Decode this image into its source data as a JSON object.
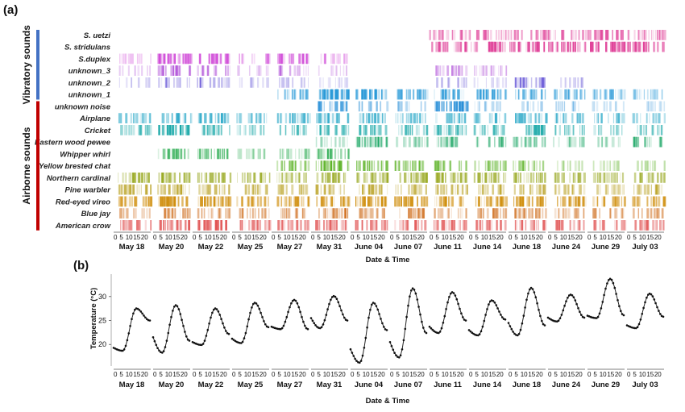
{
  "chart_data": [
    {
      "type": "heatmap",
      "panel_label": "(a)",
      "xlabel": "Date & Time",
      "dates": [
        "May 18",
        "May 20",
        "May 22",
        "May 25",
        "May 27",
        "May 31",
        "June 04",
        "June 07",
        "June 11",
        "June 14",
        "June 18",
        "June 24",
        "June 29",
        "July 03"
      ],
      "hour_ticks": [
        "0",
        "5",
        "10",
        "15",
        "20"
      ],
      "groups": [
        {
          "name": "Vibratory sounds",
          "color": "#4472c4",
          "rows": [
            "S. uetzi",
            "S. stridulans",
            "S.duplex",
            "unknown_3",
            "unknown_2",
            "unknown_1"
          ]
        },
        {
          "name": "Airborne sounds",
          "color": "#c00000",
          "rows": [
            "unknown noise",
            "Airplane",
            "Cricket",
            "Eastern wood pewee",
            "Whipper whirl",
            "Yellow brested chat",
            "Northern cardinal",
            "Pine warbler",
            "Red-eyed vireo",
            "Blue jay",
            "American crow"
          ]
        }
      ],
      "rows": [
        {
          "name": "S. uetzi",
          "color": "#e0449a",
          "days": [
            0,
            0,
            0,
            0,
            0,
            0,
            0,
            0,
            0.5,
            0.6,
            0.5,
            0.5,
            0.8,
            0.6
          ]
        },
        {
          "name": "S. stridulans",
          "color": "#e0449a",
          "days": [
            0,
            0,
            0,
            0,
            0,
            0,
            0,
            0,
            0.7,
            0.8,
            0.8,
            0.8,
            0.9,
            0.8
          ]
        },
        {
          "name": "S.duplex",
          "color": "#d04ad8",
          "days": [
            0.2,
            0.9,
            0.7,
            0.3,
            0.7,
            0.3,
            0,
            0,
            0,
            0,
            0,
            0,
            0,
            0
          ]
        },
        {
          "name": "unknown_3",
          "color": "#b050d8",
          "days": [
            0.15,
            0.6,
            0.4,
            0.1,
            0.3,
            0.1,
            0,
            0,
            0.4,
            0.3,
            0,
            0,
            0,
            0
          ]
        },
        {
          "name": "unknown_2",
          "color": "#6a5ad8",
          "days": [
            0.1,
            0.3,
            0.4,
            0.1,
            0.2,
            0.1,
            0,
            0,
            0.2,
            0.1,
            0.7,
            0.2,
            0,
            0
          ]
        },
        {
          "name": "unknown_1",
          "color": "#2a9ad8",
          "days": [
            0,
            0,
            0,
            0,
            0.5,
            0.9,
            0.9,
            0.7,
            0.6,
            0.7,
            0.6,
            0.5,
            0.5,
            0.4
          ]
        },
        {
          "name": "unknown noise",
          "color": "#2a90d8",
          "days": [
            0,
            0,
            0,
            0,
            0,
            0.7,
            0.3,
            0.2,
            0.9,
            0.2,
            0.2,
            0.2,
            0.1,
            0.1
          ]
        },
        {
          "name": "Airplane",
          "color": "#2aa8c8",
          "days": [
            0.5,
            0.6,
            0.7,
            0.4,
            0.5,
            0.6,
            0.6,
            0.5,
            0.5,
            0.5,
            0.6,
            0.5,
            0.4,
            0.4
          ]
        },
        {
          "name": "Cricket",
          "color": "#1aa8a8",
          "days": [
            0.5,
            0.8,
            0.5,
            0.3,
            0.4,
            0.5,
            0.5,
            0.5,
            0.6,
            0.5,
            0.6,
            0.4,
            0.3,
            0.4
          ]
        },
        {
          "name": "Eastern wood pewee",
          "color": "#20a868",
          "days": [
            0,
            0,
            0,
            0,
            0,
            0.2,
            0.7,
            0.4,
            0.5,
            0.4,
            0.5,
            0.3,
            0.2,
            0.5
          ]
        },
        {
          "name": "Whipper whirl",
          "color": "#20a848",
          "days": [
            0,
            0.5,
            0.6,
            0.2,
            0.3,
            0.6,
            0,
            0,
            0,
            0,
            0,
            0,
            0,
            0
          ]
        },
        {
          "name": "Yellow brested chat",
          "color": "#58b020",
          "days": [
            0,
            0,
            0,
            0,
            0.5,
            0.7,
            0.6,
            0.5,
            0.5,
            0.4,
            0.4,
            0.2,
            0.2,
            0.2
          ]
        },
        {
          "name": "Northern cardinal",
          "color": "#98a820",
          "days": [
            0.6,
            0.6,
            0.6,
            0.5,
            0.5,
            0.6,
            0.6,
            0.6,
            0.6,
            0.6,
            0.6,
            0.5,
            0.5,
            0.5
          ]
        },
        {
          "name": "Pine warbler",
          "color": "#b8a020",
          "days": [
            0.6,
            0.6,
            0.5,
            0.4,
            0.4,
            0.5,
            0.6,
            0.5,
            0.5,
            0.5,
            0.5,
            0.4,
            0.4,
            0.4
          ]
        },
        {
          "name": "Red-eyed vireo",
          "color": "#d09010",
          "days": [
            0.7,
            0.8,
            0.8,
            0.6,
            0.7,
            0.7,
            0.8,
            0.8,
            0.7,
            0.8,
            0.8,
            0.7,
            0.6,
            0.6
          ]
        },
        {
          "name": "Blue jay",
          "color": "#d07020",
          "days": [
            0.4,
            0.5,
            0.5,
            0.4,
            0.4,
            0.6,
            0.5,
            0.5,
            0.4,
            0.5,
            0.5,
            0.4,
            0.4,
            0.4
          ]
        },
        {
          "name": "American crow",
          "color": "#e05050",
          "days": [
            0.5,
            0.7,
            0.7,
            0.5,
            0.6,
            0.6,
            0.6,
            0.6,
            0.6,
            0.6,
            0.6,
            0.6,
            0.5,
            0.6
          ]
        }
      ]
    },
    {
      "type": "line",
      "panel_label": "(b)",
      "xlabel": "Date & Time",
      "ylabel": "Temperature (°C)",
      "yticks": [
        20,
        25,
        30
      ],
      "ylim": [
        15.5,
        34
      ],
      "hour_ticks": [
        "0",
        "5",
        "10",
        "15",
        "20"
      ],
      "dates": [
        "May 18",
        "May 20",
        "May 22",
        "May 25",
        "May 27",
        "May 31",
        "June 04",
        "June 07",
        "June 11",
        "June 14",
        "June 18",
        "June 24",
        "June 29",
        "July 03"
      ],
      "series": [
        {
          "date": "May 18",
          "min": 18.7,
          "max": 27.5,
          "start": 19.3,
          "end": 25.0
        },
        {
          "date": "May 20",
          "min": 18.3,
          "max": 28.2,
          "start": 21.5,
          "end": 20.8
        },
        {
          "date": "May 22",
          "min": 19.9,
          "max": 27.5,
          "start": 20.5,
          "end": 22.2
        },
        {
          "date": "May 25",
          "min": 20.3,
          "max": 28.7,
          "start": 21.2,
          "end": 23.6
        },
        {
          "date": "May 27",
          "min": 23.2,
          "max": 29.3,
          "start": 23.7,
          "end": 23.2
        },
        {
          "date": "May 31",
          "min": 23.4,
          "max": 30.1,
          "start": 25.5,
          "end": 25.0
        },
        {
          "date": "June 04",
          "min": 16.2,
          "max": 28.7,
          "start": 19.0,
          "end": 23.0
        },
        {
          "date": "June 07",
          "min": 17.3,
          "max": 31.7,
          "start": 20.5,
          "end": 22.4
        },
        {
          "date": "June 11",
          "min": 22.4,
          "max": 30.9,
          "start": 23.7,
          "end": 25.0
        },
        {
          "date": "June 14",
          "min": 21.9,
          "max": 29.2,
          "start": 23.0,
          "end": 25.2
        },
        {
          "date": "June 18",
          "min": 21.9,
          "max": 31.8,
          "start": 24.5,
          "end": 24.0
        },
        {
          "date": "June 24",
          "min": 24.8,
          "max": 30.4,
          "start": 25.6,
          "end": 25.6
        },
        {
          "date": "June 29",
          "min": 25.5,
          "max": 33.7,
          "start": 26.0,
          "end": 26.1
        },
        {
          "date": "July 03",
          "min": 23.4,
          "max": 30.6,
          "start": 24.0,
          "end": 25.8
        }
      ]
    }
  ]
}
